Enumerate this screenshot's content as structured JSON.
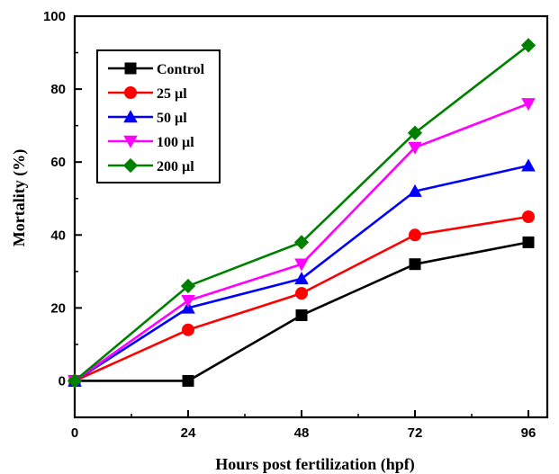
{
  "chart_data": {
    "type": "line",
    "title": "",
    "xlabel": "Hours post fertilization (hpf)",
    "ylabel": "Mortality (%)",
    "x": [
      0,
      24,
      48,
      72,
      96
    ],
    "xlim": [
      0,
      100
    ],
    "ylim": [
      -10,
      100
    ],
    "xticks": [
      "0",
      "24",
      "48",
      "72",
      "96"
    ],
    "yticks": [
      "0",
      "20",
      "40",
      "60",
      "80",
      "100"
    ],
    "grid": false,
    "legend_position": "top-left",
    "series": [
      {
        "name": "Control",
        "color": "#000000",
        "marker": "square",
        "values": [
          0,
          0,
          18,
          32,
          38
        ]
      },
      {
        "name": "25 µl",
        "color": "#ff0000",
        "marker": "circle",
        "values": [
          0,
          14,
          24,
          40,
          45
        ]
      },
      {
        "name": "50 µl",
        "color": "#0000ff",
        "marker": "triangle-up",
        "values": [
          0,
          20,
          28,
          52,
          59
        ]
      },
      {
        "name": "100 µl",
        "color": "#ff00ff",
        "marker": "triangle-down",
        "values": [
          0,
          22,
          32,
          64,
          76
        ]
      },
      {
        "name": "200 µl",
        "color": "#008000",
        "marker": "diamond",
        "values": [
          0,
          26,
          38,
          68,
          92
        ]
      }
    ]
  }
}
